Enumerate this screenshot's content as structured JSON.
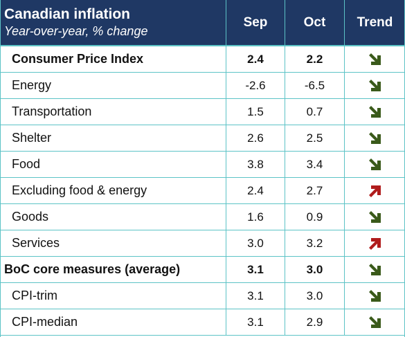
{
  "header": {
    "title": "Canadian inflation",
    "subtitle": "Year-over-year, % change",
    "col_sep": "Sep",
    "col_oct": "Oct",
    "col_trend": "Trend"
  },
  "rows": [
    {
      "label": "Consumer Price Index",
      "sep": "2.4",
      "oct": "2.2",
      "trend": "down",
      "bold": true
    },
    {
      "label": "Energy",
      "sep": "-2.6",
      "oct": "-6.5",
      "trend": "down",
      "bold": false
    },
    {
      "label": "Transportation",
      "sep": "1.5",
      "oct": "0.7",
      "trend": "down",
      "bold": false
    },
    {
      "label": "Shelter",
      "sep": "2.6",
      "oct": "2.5",
      "trend": "down",
      "bold": false
    },
    {
      "label": "Food",
      "sep": "3.8",
      "oct": "3.4",
      "trend": "down",
      "bold": false
    },
    {
      "label": "Excluding food & energy",
      "sep": "2.4",
      "oct": "2.7",
      "trend": "up",
      "bold": false
    },
    {
      "label": "Goods",
      "sep": "1.6",
      "oct": "0.9",
      "trend": "down",
      "bold": false
    },
    {
      "label": "Services",
      "sep": "3.0",
      "oct": "3.2",
      "trend": "up",
      "bold": false
    },
    {
      "label": "BoC core measures (average)",
      "sep": "3.1",
      "oct": "3.0",
      "trend": "down",
      "bold": true,
      "section": true
    },
    {
      "label": "CPI-trim",
      "sep": "3.1",
      "oct": "3.0",
      "trend": "down",
      "bold": false
    },
    {
      "label": "CPI-median",
      "sep": "3.1",
      "oct": "2.9",
      "trend": "down",
      "bold": false
    }
  ],
  "colors": {
    "header_bg": "#1f3864",
    "grid": "#5cc3c6",
    "arrow_down": "#3a5a1a",
    "arrow_up": "#b01c1c"
  },
  "icons": {
    "down": "arrow-down-right-icon",
    "up": "arrow-up-right-icon"
  }
}
